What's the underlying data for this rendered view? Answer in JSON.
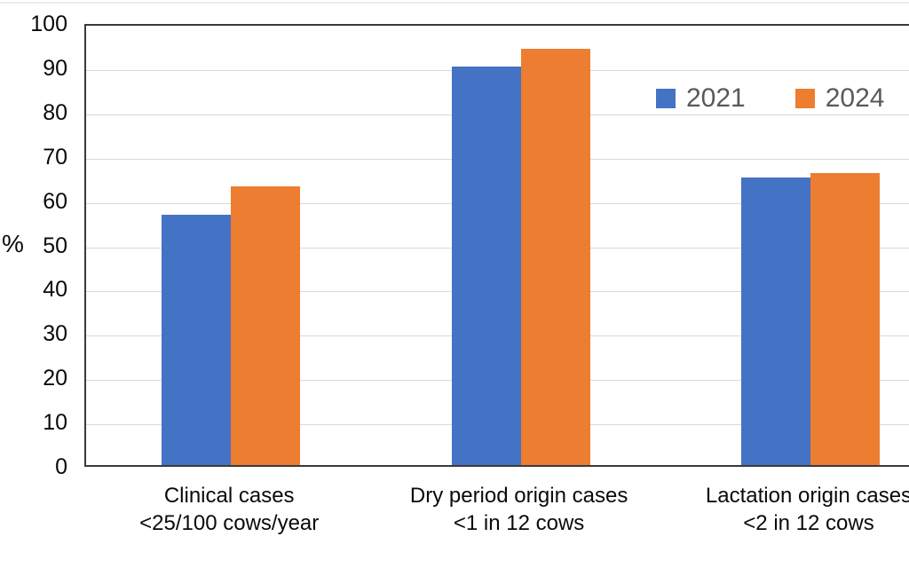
{
  "chart_data": {
    "type": "bar",
    "title": "",
    "ylabel": "%",
    "xlabel": "",
    "ylim": [
      0,
      100
    ],
    "ytick_step": 10,
    "yticks": [
      100,
      90,
      80,
      70,
      60,
      50,
      40,
      30,
      20,
      10,
      0
    ],
    "grid": true,
    "legend_position": "top-right",
    "categories": [
      {
        "line1": "Clinical cases",
        "line2": "<25/100 cows/year"
      },
      {
        "line1": "Dry period origin cases",
        "line2": "<1 in 12 cows"
      },
      {
        "line1": "Lactation origin cases",
        "line2": "<2 in 12 cows"
      }
    ],
    "series": [
      {
        "name": "2021",
        "color": "#4472C4",
        "values": [
          56.5,
          90,
          65
        ]
      },
      {
        "name": "2024",
        "color": "#ED7D31",
        "values": [
          63,
          94,
          66
        ]
      }
    ]
  },
  "colors": {
    "background": "#FFFFFF",
    "gridline": "#D9D9D9",
    "axis_line": "#3A3A3A",
    "axis_text": "#0A0A0A",
    "legend_text": "#595959",
    "series_2021": "#4472C4",
    "series_2024": "#ED7D31"
  }
}
